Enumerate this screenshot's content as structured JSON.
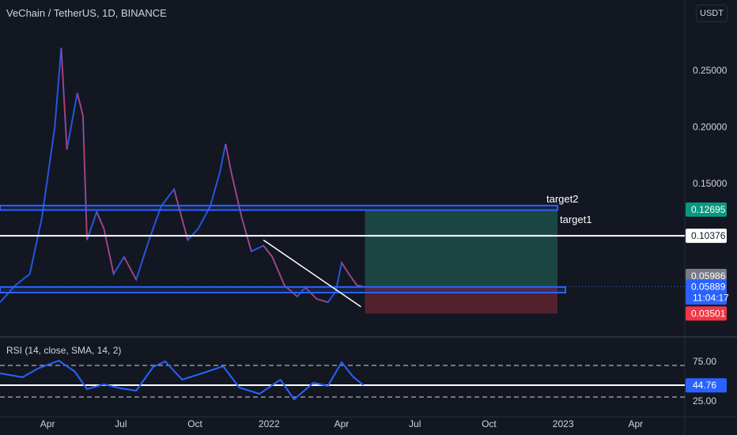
{
  "header": {
    "symbol_title": "VeChain / TetherUS, 1D, BINANCE",
    "currency_button": "USDT"
  },
  "rsi_title": "RSI (14, close, SMA, 14, 2)",
  "annotations": {
    "target2": "target2",
    "target1": "target1"
  },
  "price_badges": {
    "target2_price": "0.12695",
    "target1_price": "0.10376",
    "previous_close": "0.05986",
    "last_price": "0.05889",
    "countdown": "11:04:17",
    "stop_price": "0.03501",
    "rsi_value": "44.76"
  },
  "colors": {
    "background": "#131722",
    "candle_up": "#2962ff",
    "candle_down": "#f23645",
    "zone": "#2962ff",
    "profit_zone": "#1e4b47",
    "loss_zone": "#5b2230",
    "rsi_line": "#2962ff",
    "badge_green": "#089981",
    "badge_blue": "#2962ff",
    "badge_red": "#f23645",
    "badge_gray": "#787b86"
  },
  "chart_data": [
    {
      "type": "line",
      "name_shown": "",
      "symbol": "VeChain / TetherUS",
      "interval": "1D",
      "exchange": "BINANCE",
      "x_tick_labels": [
        "Apr",
        "Jul",
        "Oct",
        "2022",
        "Apr",
        "Jul",
        "Oct",
        "2023",
        "Apr"
      ],
      "y_tick_labels": [
        "0.25000",
        "0.20000",
        "0.15000",
        "0.10376",
        "0.05986"
      ],
      "y_ticks": [
        0.25,
        0.2,
        0.15
      ],
      "y_range": [
        0.02,
        0.28
      ],
      "price_path": [
        {
          "date": "2021-02-01",
          "price": 0.045
        },
        {
          "date": "2021-02-20",
          "price": 0.06
        },
        {
          "date": "2021-03-10",
          "price": 0.07
        },
        {
          "date": "2021-03-25",
          "price": 0.12
        },
        {
          "date": "2021-04-10",
          "price": 0.2
        },
        {
          "date": "2021-04-18",
          "price": 0.27
        },
        {
          "date": "2021-04-25",
          "price": 0.18
        },
        {
          "date": "2021-05-08",
          "price": 0.23
        },
        {
          "date": "2021-05-15",
          "price": 0.21
        },
        {
          "date": "2021-05-20",
          "price": 0.1
        },
        {
          "date": "2021-06-01",
          "price": 0.125
        },
        {
          "date": "2021-06-10",
          "price": 0.11
        },
        {
          "date": "2021-06-22",
          "price": 0.07
        },
        {
          "date": "2021-07-05",
          "price": 0.085
        },
        {
          "date": "2021-07-20",
          "price": 0.065
        },
        {
          "date": "2021-08-05",
          "price": 0.1
        },
        {
          "date": "2021-08-20",
          "price": 0.13
        },
        {
          "date": "2021-09-05",
          "price": 0.145
        },
        {
          "date": "2021-09-22",
          "price": 0.1
        },
        {
          "date": "2021-10-05",
          "price": 0.11
        },
        {
          "date": "2021-10-20",
          "price": 0.13
        },
        {
          "date": "2021-11-01",
          "price": 0.16
        },
        {
          "date": "2021-11-08",
          "price": 0.185
        },
        {
          "date": "2021-11-15",
          "price": 0.16
        },
        {
          "date": "2021-11-28",
          "price": 0.12
        },
        {
          "date": "2021-12-10",
          "price": 0.09
        },
        {
          "date": "2021-12-25",
          "price": 0.095
        },
        {
          "date": "2022-01-05",
          "price": 0.085
        },
        {
          "date": "2022-01-20",
          "price": 0.06
        },
        {
          "date": "2022-02-05",
          "price": 0.05
        },
        {
          "date": "2022-02-15",
          "price": 0.058
        },
        {
          "date": "2022-03-01",
          "price": 0.048
        },
        {
          "date": "2022-03-15",
          "price": 0.045
        },
        {
          "date": "2022-03-25",
          "price": 0.055
        },
        {
          "date": "2022-04-01",
          "price": 0.08
        },
        {
          "date": "2022-04-10",
          "price": 0.07
        },
        {
          "date": "2022-04-20",
          "price": 0.06
        },
        {
          "date": "2022-04-28",
          "price": 0.05889
        }
      ],
      "levels": {
        "target2": 0.12695,
        "target1": 0.10376,
        "entry": 0.05889,
        "stop": 0.03501
      },
      "support_zone": [
        0.0535,
        0.0585
      ],
      "resistance_zone": [
        0.1265,
        0.1305
      ],
      "trendline": {
        "start": {
          "date": "2021-12-25",
          "price": 0.1
        },
        "end": {
          "date": "2022-04-25",
          "price": 0.041
        }
      },
      "position_box": {
        "start_date": "2022-04-30",
        "end_date": "2022-12-25",
        "entry": 0.05889,
        "target": 0.12695,
        "stop": 0.03501
      },
      "grid": false
    },
    {
      "type": "line",
      "title": "RSI (14, close, SMA, 14, 2)",
      "y_tick_labels": [
        "75.00",
        "25.00"
      ],
      "y_range": [
        18,
        85
      ],
      "bands": [
        70,
        30
      ],
      "horizontal_line": 45,
      "rsi_path": [
        {
          "date": "2021-02-01",
          "rsi": 60
        },
        {
          "date": "2021-03-01",
          "rsi": 55
        },
        {
          "date": "2021-03-20",
          "rsi": 66
        },
        {
          "date": "2021-04-15",
          "rsi": 76
        },
        {
          "date": "2021-05-05",
          "rsi": 62
        },
        {
          "date": "2021-05-20",
          "rsi": 40
        },
        {
          "date": "2021-06-10",
          "rsi": 46
        },
        {
          "date": "2021-07-01",
          "rsi": 41
        },
        {
          "date": "2021-07-20",
          "rsi": 38
        },
        {
          "date": "2021-08-10",
          "rsi": 68
        },
        {
          "date": "2021-08-25",
          "rsi": 75
        },
        {
          "date": "2021-09-15",
          "rsi": 52
        },
        {
          "date": "2021-10-10",
          "rsi": 60
        },
        {
          "date": "2021-11-05",
          "rsi": 69
        },
        {
          "date": "2021-11-25",
          "rsi": 42
        },
        {
          "date": "2021-12-20",
          "rsi": 34
        },
        {
          "date": "2022-01-15",
          "rsi": 52
        },
        {
          "date": "2022-02-01",
          "rsi": 27
        },
        {
          "date": "2022-02-25",
          "rsi": 48
        },
        {
          "date": "2022-03-15",
          "rsi": 44
        },
        {
          "date": "2022-04-01",
          "rsi": 74
        },
        {
          "date": "2022-04-15",
          "rsi": 56
        },
        {
          "date": "2022-04-28",
          "rsi": 45
        }
      ],
      "current_value": 44.76
    }
  ]
}
